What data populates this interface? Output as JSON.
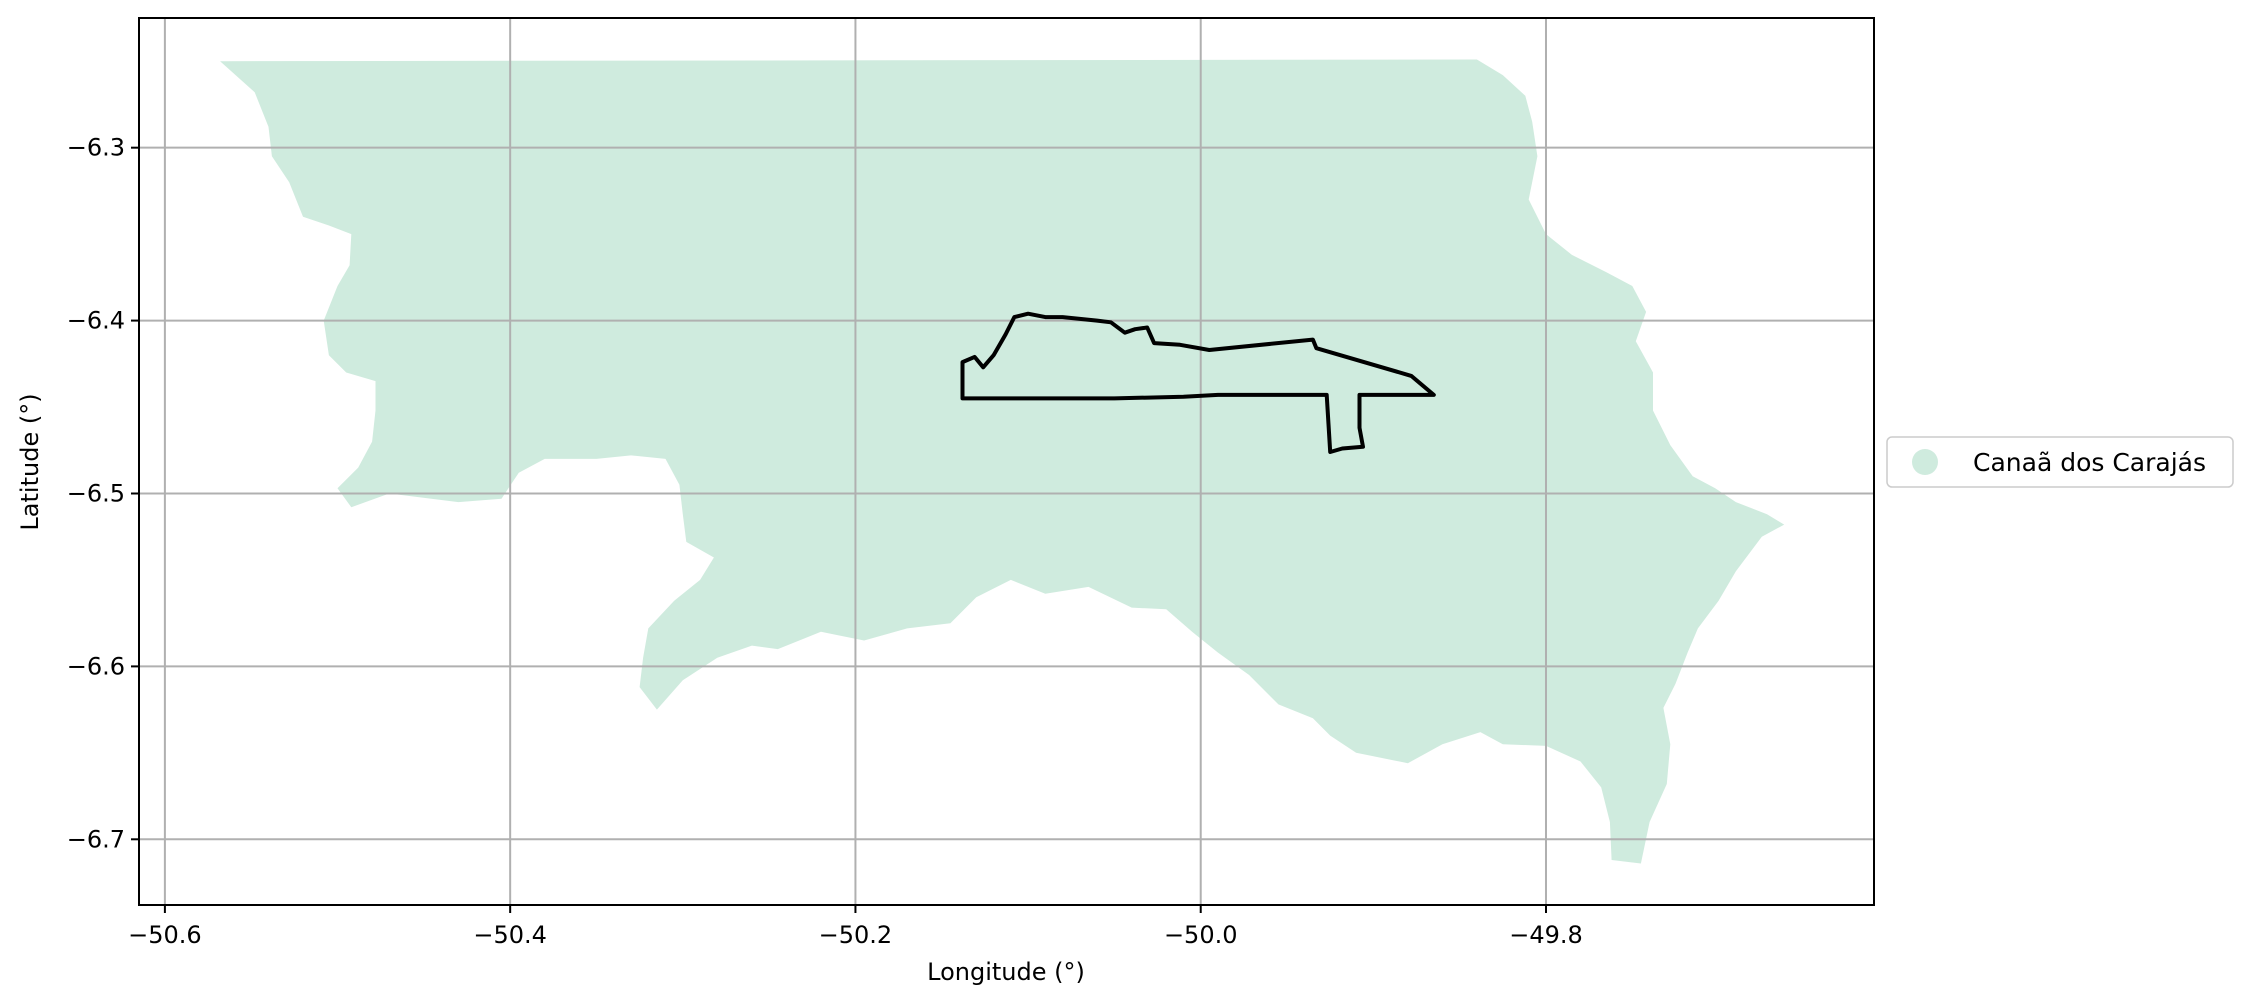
{
  "chart_data": {
    "type": "map",
    "xlabel": "Longitude (°)",
    "ylabel": "Latitude (°)",
    "xlim": [
      -50.615,
      -49.61
    ],
    "ylim": [
      -6.738,
      -6.225
    ],
    "xticks": [
      -50.6,
      -50.4,
      -50.2,
      -50.0,
      -49.8
    ],
    "xtick_labels": [
      "−50.6",
      "−50.4",
      "−50.2",
      "−50.0",
      "−49.8"
    ],
    "yticks": [
      -6.3,
      -6.4,
      -6.5,
      -6.6,
      -6.7
    ],
    "ytick_labels": [
      "−6.3",
      "−6.4",
      "−6.5",
      "−6.6",
      "−6.7"
    ],
    "grid": true,
    "legend": {
      "placement": "right",
      "entries": [
        {
          "label": "Canaã dos Carajás",
          "color": "#cfebde",
          "marker": "circle"
        }
      ]
    },
    "municipality": {
      "name": "Canaã dos Carajás",
      "fill_color": "#cfebde",
      "boundary_lonlat": [
        [
          -50.568,
          -6.25
        ],
        [
          -49.84,
          -6.249
        ],
        [
          -49.825,
          -6.258
        ],
        [
          -49.812,
          -6.27
        ],
        [
          -49.808,
          -6.285
        ],
        [
          -49.805,
          -6.305
        ],
        [
          -49.81,
          -6.33
        ],
        [
          -49.8,
          -6.35
        ],
        [
          -49.785,
          -6.362
        ],
        [
          -49.765,
          -6.372
        ],
        [
          -49.75,
          -6.38
        ],
        [
          -49.742,
          -6.395
        ],
        [
          -49.748,
          -6.412
        ],
        [
          -49.738,
          -6.43
        ],
        [
          -49.738,
          -6.452
        ],
        [
          -49.728,
          -6.472
        ],
        [
          -49.715,
          -6.49
        ],
        [
          -49.702,
          -6.497
        ],
        [
          -49.69,
          -6.505
        ],
        [
          -49.672,
          -6.512
        ],
        [
          -49.662,
          -6.518
        ],
        [
          -49.675,
          -6.525
        ],
        [
          -49.69,
          -6.545
        ],
        [
          -49.7,
          -6.562
        ],
        [
          -49.712,
          -6.578
        ],
        [
          -49.718,
          -6.592
        ],
        [
          -49.725,
          -6.61
        ],
        [
          -49.732,
          -6.624
        ],
        [
          -49.728,
          -6.645
        ],
        [
          -49.73,
          -6.668
        ],
        [
          -49.74,
          -6.69
        ],
        [
          -49.745,
          -6.714
        ],
        [
          -49.762,
          -6.712
        ],
        [
          -49.763,
          -6.69
        ],
        [
          -49.768,
          -6.67
        ],
        [
          -49.78,
          -6.655
        ],
        [
          -49.8,
          -6.646
        ],
        [
          -49.825,
          -6.645
        ],
        [
          -49.838,
          -6.638
        ],
        [
          -49.86,
          -6.645
        ],
        [
          -49.88,
          -6.656
        ],
        [
          -49.91,
          -6.65
        ],
        [
          -49.925,
          -6.64
        ],
        [
          -49.935,
          -6.63
        ],
        [
          -49.955,
          -6.622
        ],
        [
          -49.972,
          -6.605
        ],
        [
          -49.99,
          -6.592
        ],
        [
          -50.005,
          -6.58
        ],
        [
          -50.02,
          -6.567
        ],
        [
          -50.04,
          -6.566
        ],
        [
          -50.065,
          -6.554
        ],
        [
          -50.09,
          -6.558
        ],
        [
          -50.11,
          -6.55
        ],
        [
          -50.13,
          -6.56
        ],
        [
          -50.145,
          -6.575
        ],
        [
          -50.17,
          -6.578
        ],
        [
          -50.195,
          -6.585
        ],
        [
          -50.22,
          -6.58
        ],
        [
          -50.245,
          -6.59
        ],
        [
          -50.26,
          -6.588
        ],
        [
          -50.28,
          -6.595
        ],
        [
          -50.3,
          -6.608
        ],
        [
          -50.315,
          -6.625
        ],
        [
          -50.325,
          -6.612
        ],
        [
          -50.323,
          -6.595
        ],
        [
          -50.32,
          -6.578
        ],
        [
          -50.305,
          -6.562
        ],
        [
          -50.29,
          -6.55
        ],
        [
          -50.282,
          -6.537
        ],
        [
          -50.298,
          -6.528
        ],
        [
          -50.3,
          -6.512
        ],
        [
          -50.302,
          -6.495
        ],
        [
          -50.31,
          -6.48
        ],
        [
          -50.33,
          -6.478
        ],
        [
          -50.35,
          -6.48
        ],
        [
          -50.38,
          -6.48
        ],
        [
          -50.395,
          -6.488
        ],
        [
          -50.405,
          -6.503
        ],
        [
          -50.43,
          -6.505
        ],
        [
          -50.47,
          -6.5
        ],
        [
          -50.492,
          -6.508
        ],
        [
          -50.5,
          -6.497
        ],
        [
          -50.488,
          -6.485
        ],
        [
          -50.48,
          -6.47
        ],
        [
          -50.478,
          -6.452
        ],
        [
          -50.478,
          -6.435
        ],
        [
          -50.495,
          -6.43
        ],
        [
          -50.505,
          -6.42
        ],
        [
          -50.508,
          -6.4
        ],
        [
          -50.5,
          -6.38
        ],
        [
          -50.493,
          -6.368
        ],
        [
          -50.492,
          -6.35
        ],
        [
          -50.505,
          -6.345
        ],
        [
          -50.52,
          -6.34
        ],
        [
          -50.528,
          -6.32
        ],
        [
          -50.538,
          -6.305
        ],
        [
          -50.54,
          -6.288
        ],
        [
          -50.548,
          -6.268
        ]
      ]
    },
    "area_outline": {
      "stroke_color": "#000000",
      "boundary_lonlat": [
        [
          -50.138,
          -6.424
        ],
        [
          -50.131,
          -6.421
        ],
        [
          -50.126,
          -6.427
        ],
        [
          -50.12,
          -6.42
        ],
        [
          -50.113,
          -6.408
        ],
        [
          -50.108,
          -6.398
        ],
        [
          -50.1,
          -6.396
        ],
        [
          -50.09,
          -6.398
        ],
        [
          -50.08,
          -6.398
        ],
        [
          -50.07,
          -6.399
        ],
        [
          -50.06,
          -6.4
        ],
        [
          -50.052,
          -6.401
        ],
        [
          -50.044,
          -6.407
        ],
        [
          -50.038,
          -6.405
        ],
        [
          -50.031,
          -6.404
        ],
        [
          -50.027,
          -6.413
        ],
        [
          -50.012,
          -6.414
        ],
        [
          -49.995,
          -6.417
        ],
        [
          -49.935,
          -6.411
        ],
        [
          -49.933,
          -6.416
        ],
        [
          -49.878,
          -6.432
        ],
        [
          -49.865,
          -6.443
        ],
        [
          -49.908,
          -6.443
        ],
        [
          -49.908,
          -6.462
        ],
        [
          -49.906,
          -6.473
        ],
        [
          -49.918,
          -6.474
        ],
        [
          -49.925,
          -6.476
        ],
        [
          -49.926,
          -6.46
        ],
        [
          -49.927,
          -6.443
        ],
        [
          -49.99,
          -6.443
        ],
        [
          -50.01,
          -6.444
        ],
        [
          -50.05,
          -6.445
        ],
        [
          -50.138,
          -6.445
        ]
      ]
    }
  }
}
